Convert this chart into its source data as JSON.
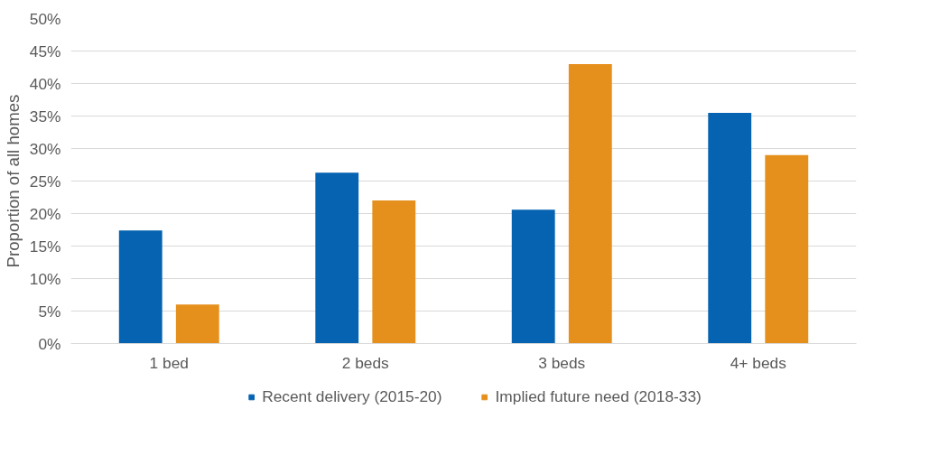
{
  "chart_data": {
    "type": "bar",
    "ylabel": "Proportion of all homes",
    "categories": [
      "1 bed",
      "2 beds",
      "3 beds",
      "4+ beds"
    ],
    "series": [
      {
        "name": "Recent delivery (2015-20)",
        "color": "#0563b1",
        "values": [
          17.4,
          26.3,
          20.6,
          35.5
        ]
      },
      {
        "name": "Implied future need (2018-33)",
        "color": "#e5901c",
        "values": [
          6.0,
          22.0,
          43.0,
          29.0
        ]
      }
    ],
    "ylim": [
      0,
      50
    ],
    "yticks": [
      {
        "value": 0,
        "label": "0%"
      },
      {
        "value": 5,
        "label": "5%"
      },
      {
        "value": 10,
        "label": "10%"
      },
      {
        "value": 15,
        "label": "15%"
      },
      {
        "value": 20,
        "label": "20%"
      },
      {
        "value": 25,
        "label": "25%"
      },
      {
        "value": 30,
        "label": "30%"
      },
      {
        "value": 35,
        "label": "35%"
      },
      {
        "value": 40,
        "label": "40%"
      },
      {
        "value": 45,
        "label": "45%"
      },
      {
        "value": 50,
        "label": "50%"
      }
    ],
    "grid": "y",
    "legend": "bottom"
  }
}
